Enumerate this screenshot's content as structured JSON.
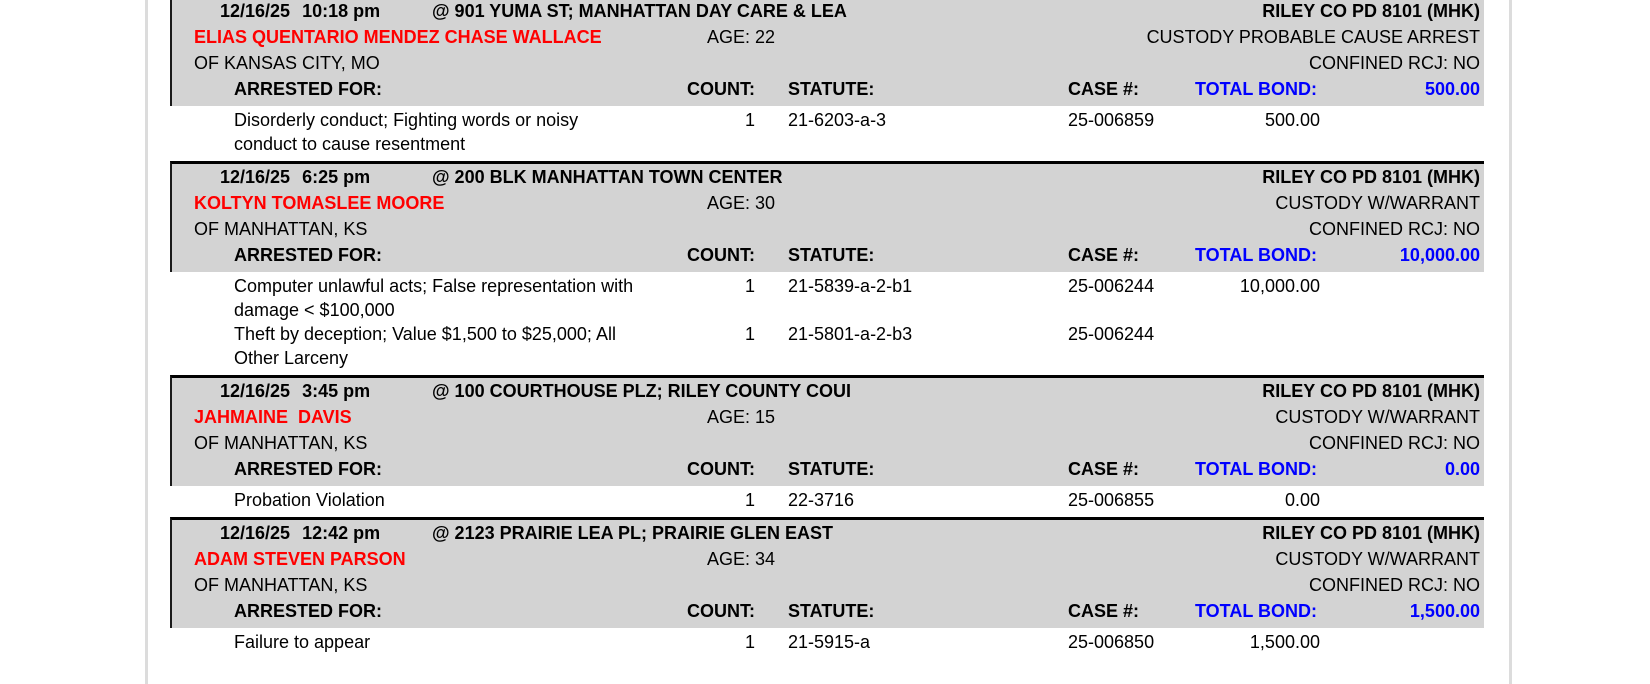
{
  "document": {
    "labels": {
      "arrested_for": "ARRESTED FOR:",
      "count": "COUNT:",
      "statute": "STATUTE:",
      "case_number": "CASE #:",
      "total_bond": "TOTAL BOND:",
      "age": "AGE:"
    },
    "colors": {
      "band_gray": "#d3d3d3",
      "name_red": "#ff0000",
      "bond_blue": "#0000ff"
    },
    "records": [
      {
        "date": "12/16/25",
        "time": "10:18 pm",
        "location": "@ 901 YUMA ST; MANHATTAN DAY CARE & LEA",
        "agency": "RILEY CO PD 8101 (MHK)",
        "name": "ELIAS QUENTARIO MENDEZ CHASE WALLACE",
        "age": "22",
        "custody": "CUSTODY PROBABLE CAUSE ARREST",
        "origin": "OF KANSAS CITY, MO",
        "confined": "CONFINED RCJ: NO",
        "total_bond": "500.00",
        "charges": [
          {
            "description": "Disorderly conduct; Fighting words or noisy conduct to cause resentment",
            "count": "1",
            "statute": "21-6203-a-3",
            "case_number": "25-006859",
            "bond": "500.00"
          }
        ]
      },
      {
        "date": "12/16/25",
        "time": "6:25 pm",
        "location": "@ 200 BLK MANHATTAN TOWN CENTER",
        "agency": "RILEY CO PD 8101 (MHK)",
        "name": "KOLTYN TOMASLEE MOORE",
        "age": "30",
        "custody": "CUSTODY W/WARRANT",
        "origin": "OF MANHATTAN, KS",
        "confined": "CONFINED RCJ: NO",
        "total_bond": "10,000.00",
        "charges": [
          {
            "description": "Computer unlawful acts; False representation with damage < $100,000",
            "count": "1",
            "statute": "21-5839-a-2-b1",
            "case_number": "25-006244",
            "bond": "10,000.00"
          },
          {
            "description": "Theft by deception; Value $1,500 to $25,000; All Other Larceny",
            "count": "1",
            "statute": "21-5801-a-2-b3",
            "case_number": "25-006244",
            "bond": ""
          }
        ]
      },
      {
        "date": "12/16/25",
        "time": "3:45 pm",
        "location": "@ 100 COURTHOUSE PLZ; RILEY COUNTY COUI",
        "agency": "RILEY CO PD 8101 (MHK)",
        "name": "JAHMAINE  DAVIS",
        "age": "15",
        "custody": "CUSTODY W/WARRANT",
        "origin": "OF MANHATTAN, KS",
        "confined": "CONFINED RCJ: NO",
        "total_bond": "0.00",
        "charges": [
          {
            "description": "Probation Violation",
            "count": "1",
            "statute": "22-3716",
            "case_number": "25-006855",
            "bond": "0.00"
          }
        ]
      },
      {
        "date": "12/16/25",
        "time": "12:42 pm",
        "location": "@ 2123 PRAIRIE LEA PL; PRAIRIE GLEN EAST",
        "agency": "RILEY CO PD 8101 (MHK)",
        "name": "ADAM STEVEN PARSON",
        "age": "34",
        "custody": "CUSTODY W/WARRANT",
        "origin": "OF MANHATTAN, KS",
        "confined": "CONFINED RCJ: NO",
        "total_bond": "1,500.00",
        "charges": [
          {
            "description": "Failure to appear",
            "count": "1",
            "statute": "21-5915-a",
            "case_number": "25-006850",
            "bond": "1,500.00"
          }
        ]
      }
    ]
  }
}
